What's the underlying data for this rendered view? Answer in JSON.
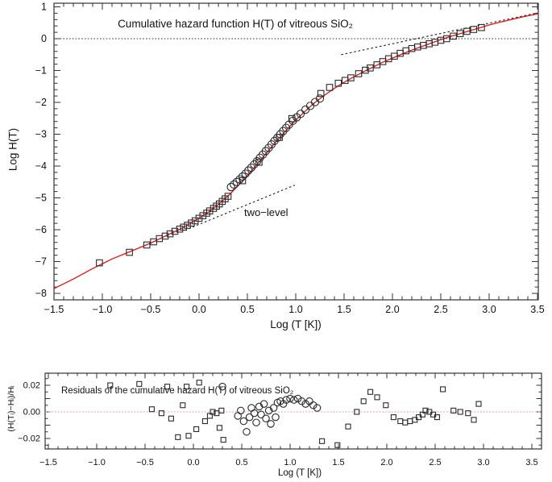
{
  "page": {
    "background": "#ffffff",
    "text_color": "#111111"
  },
  "chart_data": [
    {
      "type": "scatter",
      "title": "Cumulative hazard function H(T) of vitreous SiO₂",
      "xlabel": "Log (T [K])",
      "ylabel": "Log H(T)",
      "xlim": [
        -1.5,
        3.5
      ],
      "ylim": [
        -8.2,
        1.1
      ],
      "grid": false,
      "legend": "none",
      "x_ticks": [
        -1.5,
        -1.0,
        -0.5,
        0.0,
        0.5,
        1.0,
        1.5,
        2.0,
        2.5,
        3.0,
        3.5
      ],
      "x_tick_labels": [
        "−1.5",
        "−1.0",
        "−0.5",
        "0.0",
        "0.5",
        "1.0",
        "1.5",
        "2.0",
        "2.5",
        "3.0",
        "3.5"
      ],
      "y_ticks": [
        1,
        0,
        -1,
        -2,
        -3,
        -4,
        -5,
        -6,
        -7,
        -8
      ],
      "y_tick_labels": [
        "1",
        "0",
        "−1",
        "−2",
        "−3",
        "−4",
        "−5",
        "−6",
        "−7",
        "−8"
      ],
      "annotations": [
        {
          "text": "two−level",
          "x": 0.52,
          "y": -5.55
        }
      ],
      "series": [
        {
          "name": "hazard-squares",
          "marker": "square",
          "color": "#2b2b2b",
          "points": [
            [
              -1.03,
              -7.04
            ],
            [
              -0.72,
              -6.71
            ],
            [
              -0.54,
              -6.48
            ],
            [
              -0.47,
              -6.38
            ],
            [
              -0.41,
              -6.28
            ],
            [
              -0.35,
              -6.2
            ],
            [
              -0.3,
              -6.13
            ],
            [
              -0.25,
              -6.05
            ],
            [
              -0.2,
              -5.98
            ],
            [
              -0.16,
              -5.92
            ],
            [
              -0.12,
              -5.86
            ],
            [
              -0.08,
              -5.79
            ],
            [
              -0.04,
              -5.72
            ],
            [
              0.0,
              -5.64
            ],
            [
              0.04,
              -5.56
            ],
            [
              0.08,
              -5.48
            ],
            [
              0.11,
              -5.41
            ],
            [
              0.15,
              -5.33
            ],
            [
              0.18,
              -5.26
            ],
            [
              0.21,
              -5.19
            ],
            [
              0.24,
              -5.11
            ],
            [
              0.27,
              -5.03
            ],
            [
              0.3,
              -4.95
            ],
            [
              0.45,
              -4.46
            ],
            [
              0.62,
              -3.88
            ],
            [
              0.83,
              -3.1
            ],
            [
              0.96,
              -2.51
            ],
            [
              1.26,
              -1.72
            ],
            [
              1.35,
              -1.53
            ],
            [
              1.44,
              -1.4
            ],
            [
              1.51,
              -1.31
            ],
            [
              1.57,
              -1.23
            ],
            [
              1.65,
              -1.1
            ],
            [
              1.72,
              -0.99
            ],
            [
              1.77,
              -0.92
            ],
            [
              1.84,
              -0.82
            ],
            [
              1.9,
              -0.72
            ],
            [
              1.96,
              -0.63
            ],
            [
              2.02,
              -0.55
            ],
            [
              2.08,
              -0.46
            ],
            [
              2.14,
              -0.38
            ],
            [
              2.2,
              -0.31
            ],
            [
              2.26,
              -0.26
            ],
            [
              2.32,
              -0.21
            ],
            [
              2.38,
              -0.16
            ],
            [
              2.44,
              -0.11
            ],
            [
              2.5,
              -0.05
            ],
            [
              2.56,
              0.0
            ],
            [
              2.63,
              0.08
            ],
            [
              2.7,
              0.16
            ],
            [
              2.77,
              0.23
            ],
            [
              2.84,
              0.29
            ],
            [
              2.92,
              0.35
            ]
          ]
        },
        {
          "name": "hazard-circles",
          "marker": "circle",
          "color": "#2b2b2b",
          "points": [
            [
              0.33,
              -4.66
            ],
            [
              0.36,
              -4.58
            ],
            [
              0.39,
              -4.5
            ],
            [
              0.42,
              -4.42
            ],
            [
              0.45,
              -4.33
            ],
            [
              0.48,
              -4.24
            ],
            [
              0.51,
              -4.14
            ],
            [
              0.54,
              -4.05
            ],
            [
              0.57,
              -3.95
            ],
            [
              0.6,
              -3.85
            ],
            [
              0.63,
              -3.74
            ],
            [
              0.66,
              -3.64
            ],
            [
              0.69,
              -3.53
            ],
            [
              0.72,
              -3.43
            ],
            [
              0.75,
              -3.32
            ],
            [
              0.78,
              -3.21
            ],
            [
              0.81,
              -3.11
            ],
            [
              0.84,
              -3.0
            ],
            [
              0.87,
              -2.9
            ],
            [
              0.9,
              -2.8
            ],
            [
              0.93,
              -2.7
            ],
            [
              0.97,
              -2.58
            ],
            [
              1.01,
              -2.47
            ],
            [
              1.05,
              -2.36
            ],
            [
              1.1,
              -2.23
            ],
            [
              1.15,
              -2.11
            ],
            [
              1.2,
              -1.99
            ],
            [
              1.25,
              -1.88
            ]
          ]
        }
      ],
      "lines": [
        {
          "name": "fit-curve",
          "style": "solid",
          "color": "#e81111",
          "points": [
            [
              -1.5,
              -7.85
            ],
            [
              -1.3,
              -7.55
            ],
            [
              -1.1,
              -7.22
            ],
            [
              -0.9,
              -6.92
            ],
            [
              -0.7,
              -6.67
            ],
            [
              -0.5,
              -6.42
            ],
            [
              -0.3,
              -6.13
            ],
            [
              -0.2,
              -5.99
            ],
            [
              -0.1,
              -5.82
            ],
            [
              0.0,
              -5.64
            ],
            [
              0.1,
              -5.44
            ],
            [
              0.2,
              -5.21
            ],
            [
              0.3,
              -4.94
            ],
            [
              0.4,
              -4.63
            ],
            [
              0.5,
              -4.3
            ],
            [
              0.6,
              -3.95
            ],
            [
              0.7,
              -3.58
            ],
            [
              0.8,
              -3.22
            ],
            [
              0.9,
              -2.88
            ],
            [
              1.0,
              -2.56
            ],
            [
              1.1,
              -2.27
            ],
            [
              1.2,
              -2.0
            ],
            [
              1.3,
              -1.77
            ],
            [
              1.4,
              -1.56
            ],
            [
              1.5,
              -1.37
            ],
            [
              1.6,
              -1.2
            ],
            [
              1.7,
              -1.04
            ],
            [
              1.8,
              -0.89
            ],
            [
              1.9,
              -0.74
            ],
            [
              2.0,
              -0.61
            ],
            [
              2.1,
              -0.48
            ],
            [
              2.2,
              -0.36
            ],
            [
              2.3,
              -0.25
            ],
            [
              2.4,
              -0.14
            ],
            [
              2.5,
              -0.03
            ],
            [
              2.6,
              0.07
            ],
            [
              2.7,
              0.16
            ],
            [
              2.8,
              0.25
            ],
            [
              2.9,
              0.34
            ],
            [
              3.0,
              0.43
            ],
            [
              3.1,
              0.51
            ],
            [
              3.2,
              0.58
            ],
            [
              3.3,
              0.65
            ],
            [
              3.4,
              0.72
            ],
            [
              3.5,
              0.78
            ]
          ]
        },
        {
          "name": "zero-guide",
          "style": "dotted",
          "color": "#333333",
          "points": [
            [
              -1.5,
              0
            ],
            [
              3.5,
              0
            ]
          ]
        },
        {
          "name": "two-level-asymptote",
          "style": "dashed",
          "color": "#222222",
          "points": [
            [
              -0.15,
              -6.02
            ],
            [
              0.99,
              -4.6
            ]
          ]
        },
        {
          "name": "high-temp-asymptote",
          "style": "dashed",
          "color": "#222222",
          "points": [
            [
              1.47,
              -0.5
            ],
            [
              3.5,
              0.81
            ]
          ]
        }
      ]
    },
    {
      "type": "scatter",
      "title": "Residuals of the cumulative hazard H(T) of vitreous SiO₂",
      "xlabel": "Log (T [K])",
      "ylabel": "(H(Tᵢ)−Hᵢ)/Hᵢ",
      "xlim": [
        -1.5,
        3.5
      ],
      "ylim": [
        -0.028,
        0.029
      ],
      "grid": false,
      "legend": "none",
      "x_ticks": [
        -1.5,
        -1.0,
        -0.5,
        0.0,
        0.5,
        1.0,
        1.5,
        2.0,
        2.5,
        3.0,
        3.5
      ],
      "x_tick_labels": [
        "−1.5",
        "−1.0",
        "−0.5",
        "0.0",
        "0.5",
        "1.0",
        "1.5",
        "2.0",
        "2.5",
        "3.0",
        "3.5"
      ],
      "y_ticks": [
        0.02,
        0.0,
        -0.02
      ],
      "y_tick_labels": [
        "0.02",
        "0.00",
        "−0.02"
      ],
      "annotations": [],
      "series": [
        {
          "name": "residual-squares",
          "marker": "square",
          "color": "#2b2b2b",
          "points": [
            [
              -0.86,
              0.02
            ],
            [
              -0.56,
              0.021
            ],
            [
              -0.43,
              0.002
            ],
            [
              -0.33,
              -0.001
            ],
            [
              -0.27,
              0.019
            ],
            [
              -0.23,
              -0.005
            ],
            [
              -0.16,
              -0.019
            ],
            [
              -0.11,
              0.005
            ],
            [
              -0.07,
              0.019
            ],
            [
              -0.05,
              -0.018
            ],
            [
              0.03,
              -0.013
            ],
            [
              0.06,
              0.022
            ],
            [
              0.12,
              -0.007
            ],
            [
              0.17,
              -0.003
            ],
            [
              0.2,
              0.0
            ],
            [
              0.24,
              -0.001
            ],
            [
              0.27,
              -0.012
            ],
            [
              0.29,
              0.001
            ],
            [
              0.31,
              -0.021
            ],
            [
              1.33,
              -0.022
            ],
            [
              1.49,
              -0.025
            ],
            [
              1.6,
              -0.011
            ],
            [
              1.69,
              0.0
            ],
            [
              1.76,
              0.008
            ],
            [
              1.83,
              0.015
            ],
            [
              1.9,
              0.011
            ],
            [
              1.99,
              0.005
            ],
            [
              2.07,
              -0.004
            ],
            [
              2.14,
              -0.007
            ],
            [
              2.19,
              -0.008
            ],
            [
              2.24,
              -0.007
            ],
            [
              2.29,
              -0.006
            ],
            [
              2.33,
              -0.004
            ],
            [
              2.37,
              -0.002
            ],
            [
              2.4,
              0.001
            ],
            [
              2.44,
              0.0
            ],
            [
              2.48,
              -0.002
            ],
            [
              2.52,
              -0.004
            ],
            [
              2.58,
              0.017
            ],
            [
              2.69,
              0.001
            ],
            [
              2.76,
              0.0
            ],
            [
              2.84,
              -0.001
            ],
            [
              2.9,
              -0.006
            ],
            [
              2.95,
              0.006
            ]
          ]
        },
        {
          "name": "residual-circles",
          "marker": "circle",
          "color": "#2b2b2b",
          "points": [
            [
              0.3,
              0.019
            ],
            [
              0.46,
              -0.003
            ],
            [
              0.49,
              0.001
            ],
            [
              0.52,
              -0.007
            ],
            [
              0.55,
              -0.015
            ],
            [
              0.58,
              -0.004
            ],
            [
              0.6,
              0.003
            ],
            [
              0.63,
              -0.001
            ],
            [
              0.65,
              -0.008
            ],
            [
              0.68,
              0.004
            ],
            [
              0.7,
              -0.002
            ],
            [
              0.73,
              0.006
            ],
            [
              0.75,
              -0.005
            ],
            [
              0.78,
              0.001
            ],
            [
              0.8,
              -0.009
            ],
            [
              0.83,
              0.003
            ],
            [
              0.85,
              -0.004
            ],
            [
              0.87,
              0.007
            ],
            [
              0.9,
              0.008
            ],
            [
              0.93,
              0.006
            ],
            [
              0.96,
              0.009
            ],
            [
              1.0,
              0.01
            ],
            [
              1.04,
              0.009
            ],
            [
              1.08,
              0.01
            ],
            [
              1.12,
              0.008
            ],
            [
              1.16,
              0.006
            ],
            [
              1.2,
              0.008
            ],
            [
              1.24,
              0.005
            ],
            [
              1.28,
              0.003
            ]
          ]
        }
      ],
      "lines": [
        {
          "name": "zero-residual-line",
          "style": "dotted",
          "color": "#ef8f8f",
          "points": [
            [
              -1.53,
              0
            ],
            [
              3.6,
              0
            ]
          ]
        }
      ]
    }
  ]
}
